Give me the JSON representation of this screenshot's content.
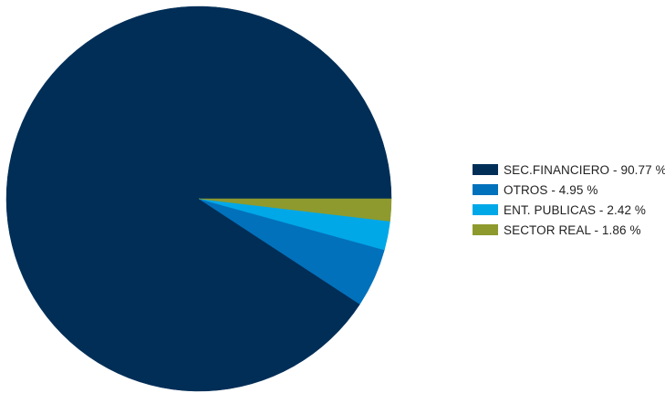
{
  "chart_data": {
    "type": "pie",
    "title": "",
    "legend_position": "right",
    "start_angle_deg": 0,
    "direction": "counterclockwise",
    "slices": [
      {
        "label": "SEC.FINANCIERO - 90.77 %",
        "value": 90.77,
        "color": "#002e57"
      },
      {
        "label": "OTROS - 4.95 %",
        "value": 4.95,
        "color": "#0271bb"
      },
      {
        "label": "ENT. PUBLICAS - 2.42 %",
        "value": 2.42,
        "color": "#00a8e8"
      },
      {
        "label": "SECTOR REAL - 1.86 %",
        "value": 1.86,
        "color": "#8e9a2d"
      }
    ]
  }
}
